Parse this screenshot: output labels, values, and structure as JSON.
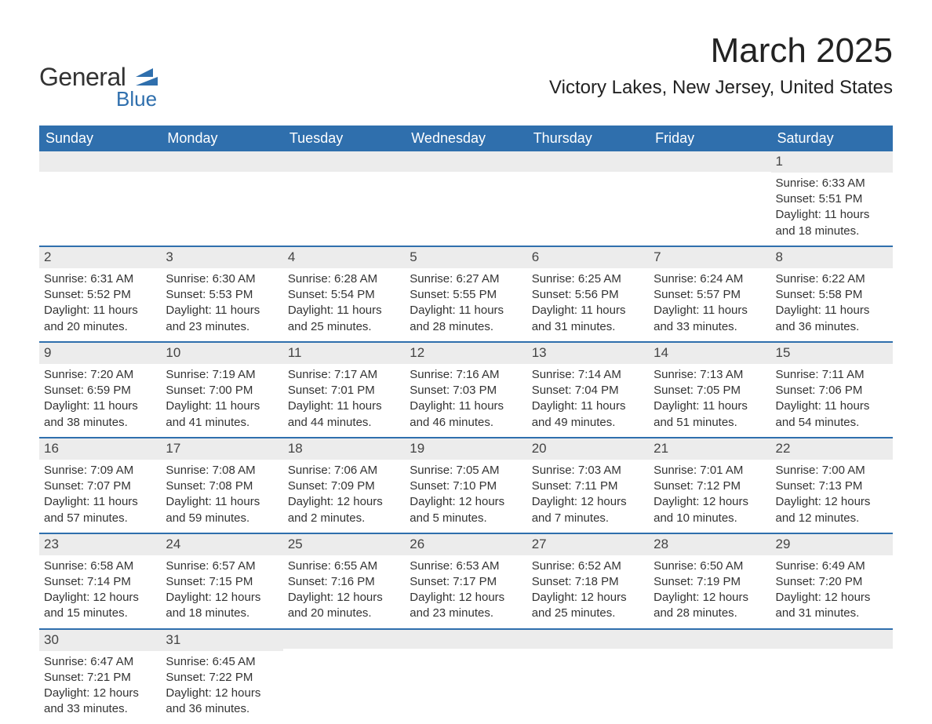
{
  "logo": {
    "line1": "General",
    "line2": "Blue",
    "flag_color": "#2f6fad"
  },
  "title": "March 2025",
  "location": "Victory Lakes, New Jersey, United States",
  "colors": {
    "header_bg": "#2f6fad",
    "header_text": "#ffffff",
    "daybar_bg": "#ececec",
    "daybar_border": "#2f6fad",
    "body_text": "#333333",
    "page_bg": "#ffffff"
  },
  "day_headers": [
    "Sunday",
    "Monday",
    "Tuesday",
    "Wednesday",
    "Thursday",
    "Friday",
    "Saturday"
  ],
  "weeks": [
    [
      null,
      null,
      null,
      null,
      null,
      null,
      {
        "day": "1",
        "sunrise": "6:33 AM",
        "sunset": "5:51 PM",
        "daylight": "11 hours and 18 minutes."
      }
    ],
    [
      {
        "day": "2",
        "sunrise": "6:31 AM",
        "sunset": "5:52 PM",
        "daylight": "11 hours and 20 minutes."
      },
      {
        "day": "3",
        "sunrise": "6:30 AM",
        "sunset": "5:53 PM",
        "daylight": "11 hours and 23 minutes."
      },
      {
        "day": "4",
        "sunrise": "6:28 AM",
        "sunset": "5:54 PM",
        "daylight": "11 hours and 25 minutes."
      },
      {
        "day": "5",
        "sunrise": "6:27 AM",
        "sunset": "5:55 PM",
        "daylight": "11 hours and 28 minutes."
      },
      {
        "day": "6",
        "sunrise": "6:25 AM",
        "sunset": "5:56 PM",
        "daylight": "11 hours and 31 minutes."
      },
      {
        "day": "7",
        "sunrise": "6:24 AM",
        "sunset": "5:57 PM",
        "daylight": "11 hours and 33 minutes."
      },
      {
        "day": "8",
        "sunrise": "6:22 AM",
        "sunset": "5:58 PM",
        "daylight": "11 hours and 36 minutes."
      }
    ],
    [
      {
        "day": "9",
        "sunrise": "7:20 AM",
        "sunset": "6:59 PM",
        "daylight": "11 hours and 38 minutes."
      },
      {
        "day": "10",
        "sunrise": "7:19 AM",
        "sunset": "7:00 PM",
        "daylight": "11 hours and 41 minutes."
      },
      {
        "day": "11",
        "sunrise": "7:17 AM",
        "sunset": "7:01 PM",
        "daylight": "11 hours and 44 minutes."
      },
      {
        "day": "12",
        "sunrise": "7:16 AM",
        "sunset": "7:03 PM",
        "daylight": "11 hours and 46 minutes."
      },
      {
        "day": "13",
        "sunrise": "7:14 AM",
        "sunset": "7:04 PM",
        "daylight": "11 hours and 49 minutes."
      },
      {
        "day": "14",
        "sunrise": "7:13 AM",
        "sunset": "7:05 PM",
        "daylight": "11 hours and 51 minutes."
      },
      {
        "day": "15",
        "sunrise": "7:11 AM",
        "sunset": "7:06 PM",
        "daylight": "11 hours and 54 minutes."
      }
    ],
    [
      {
        "day": "16",
        "sunrise": "7:09 AM",
        "sunset": "7:07 PM",
        "daylight": "11 hours and 57 minutes."
      },
      {
        "day": "17",
        "sunrise": "7:08 AM",
        "sunset": "7:08 PM",
        "daylight": "11 hours and 59 minutes."
      },
      {
        "day": "18",
        "sunrise": "7:06 AM",
        "sunset": "7:09 PM",
        "daylight": "12 hours and 2 minutes."
      },
      {
        "day": "19",
        "sunrise": "7:05 AM",
        "sunset": "7:10 PM",
        "daylight": "12 hours and 5 minutes."
      },
      {
        "day": "20",
        "sunrise": "7:03 AM",
        "sunset": "7:11 PM",
        "daylight": "12 hours and 7 minutes."
      },
      {
        "day": "21",
        "sunrise": "7:01 AM",
        "sunset": "7:12 PM",
        "daylight": "12 hours and 10 minutes."
      },
      {
        "day": "22",
        "sunrise": "7:00 AM",
        "sunset": "7:13 PM",
        "daylight": "12 hours and 12 minutes."
      }
    ],
    [
      {
        "day": "23",
        "sunrise": "6:58 AM",
        "sunset": "7:14 PM",
        "daylight": "12 hours and 15 minutes."
      },
      {
        "day": "24",
        "sunrise": "6:57 AM",
        "sunset": "7:15 PM",
        "daylight": "12 hours and 18 minutes."
      },
      {
        "day": "25",
        "sunrise": "6:55 AM",
        "sunset": "7:16 PM",
        "daylight": "12 hours and 20 minutes."
      },
      {
        "day": "26",
        "sunrise": "6:53 AM",
        "sunset": "7:17 PM",
        "daylight": "12 hours and 23 minutes."
      },
      {
        "day": "27",
        "sunrise": "6:52 AM",
        "sunset": "7:18 PM",
        "daylight": "12 hours and 25 minutes."
      },
      {
        "day": "28",
        "sunrise": "6:50 AM",
        "sunset": "7:19 PM",
        "daylight": "12 hours and 28 minutes."
      },
      {
        "day": "29",
        "sunrise": "6:49 AM",
        "sunset": "7:20 PM",
        "daylight": "12 hours and 31 minutes."
      }
    ],
    [
      {
        "day": "30",
        "sunrise": "6:47 AM",
        "sunset": "7:21 PM",
        "daylight": "12 hours and 33 minutes."
      },
      {
        "day": "31",
        "sunrise": "6:45 AM",
        "sunset": "7:22 PM",
        "daylight": "12 hours and 36 minutes."
      },
      null,
      null,
      null,
      null,
      null
    ]
  ],
  "labels": {
    "sunrise_prefix": "Sunrise: ",
    "sunset_prefix": "Sunset: ",
    "daylight_prefix": "Daylight: "
  }
}
